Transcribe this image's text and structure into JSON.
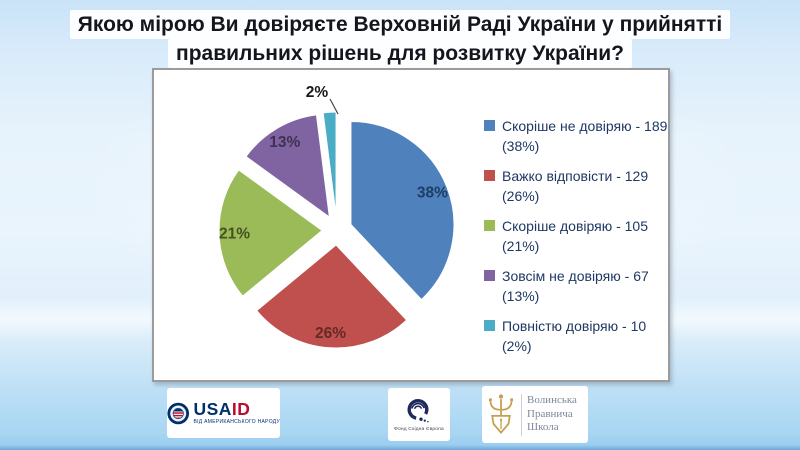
{
  "title": {
    "line1": "Якою мірою Ви довіряєте Верховній Раді України у прийнятті",
    "line2": "правильних рішень для розвитку України?"
  },
  "chart_data": {
    "type": "pie",
    "title": "Якою мірою Ви довіряєте Верховній Раді України у прийнятті правильних рішень для розвитку України?",
    "exploded": true,
    "start_angle_deg": 0,
    "direction": "clockwise",
    "legend_position": "right",
    "legend_text_color": "#1F3864",
    "slices": [
      {
        "name": "Скоріше не довіряю",
        "value": 189,
        "pct": 38,
        "color": "#4F81BD",
        "label_color": "#1C3E63"
      },
      {
        "name": "Важко відповісти",
        "value": 129,
        "pct": 26,
        "color": "#C0504D",
        "label_color": "#632A26"
      },
      {
        "name": "Скоріше довіряю",
        "value": 105,
        "pct": 21,
        "color": "#9BBB59",
        "label_color": "#45511E"
      },
      {
        "name": "Зовсім не довіряю",
        "value": 67,
        "pct": 13,
        "color": "#8064A2",
        "label_color": "#3E3153"
      },
      {
        "name": "Повністю довіряю",
        "value": 10,
        "pct": 2,
        "color": "#4BACC6",
        "label_color": "#1A1A1A"
      }
    ]
  },
  "footer": {
    "usaid": {
      "part_blue": "USA",
      "part_red": "ID",
      "tagline": "ВІД АМЕРИКАНСЬКОГО НАРОДУ",
      "blue": "#002F6C",
      "red": "#BA0C2F"
    },
    "eef": {
      "tagline": "Фонд Східна Європа"
    },
    "school": {
      "line1": "Волинська",
      "line2": "Правнича",
      "line3": "Школа"
    }
  }
}
